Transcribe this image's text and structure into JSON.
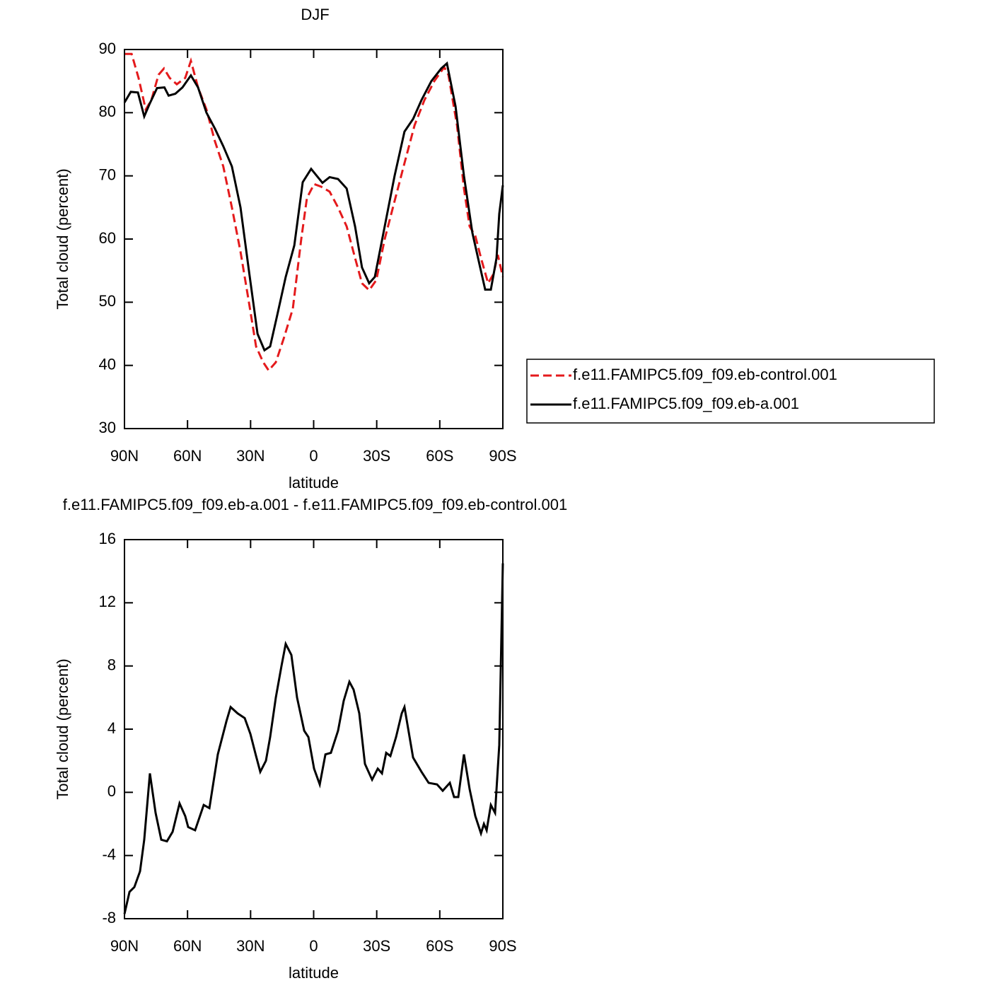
{
  "chart_data": [
    {
      "type": "line",
      "title": "DJF",
      "x_label": "latitude",
      "y_label": "Total cloud (percent)",
      "xlim": [
        90,
        -90
      ],
      "ylim": [
        30,
        90
      ],
      "xticks": [
        {
          "value": 90,
          "label": "90N"
        },
        {
          "value": 60,
          "label": "60N"
        },
        {
          "value": 30,
          "label": "30N"
        },
        0,
        {
          "value": -30,
          "label": "30S"
        },
        {
          "value": -60,
          "label": "60S"
        },
        {
          "value": -90,
          "label": "90S"
        }
      ],
      "yticks": [
        30,
        40,
        50,
        60,
        70,
        80,
        90
      ],
      "legend": "right",
      "series": [
        {
          "name": "f.e11.FAMIPC5.f09_f09.eb-control.001",
          "color": "#e41a1c",
          "linestyle": "dashed",
          "x": [
            90,
            86.6,
            83.3,
            79.9,
            77.2,
            73.8,
            71.2,
            68.5,
            65.1,
            61.1,
            58.4,
            55,
            51,
            47,
            43,
            38.9,
            34.8,
            30.8,
            27.4,
            24,
            21.4,
            18,
            14,
            9.9,
            5.9,
            3.2,
            -0.2,
            -3.5,
            -7.6,
            -11.6,
            -15.7,
            -19.7,
            -23,
            -26.4,
            -29.8,
            -33.8,
            -38.5,
            -43.2,
            -48,
            -52.7,
            -57.4,
            -62.1,
            -64.1,
            -68.2,
            -71.5,
            -74.2,
            -76.9,
            -79.6,
            -83,
            -85.6,
            -87.6,
            -90
          ],
          "values": [
            89.3,
            89.3,
            85.5,
            80.5,
            82,
            86,
            87,
            85.5,
            84.5,
            85.5,
            88.2,
            84,
            80.5,
            75.5,
            71.5,
            65,
            58,
            50,
            43,
            40.5,
            39.2,
            40.5,
            44.5,
            49,
            60,
            66.5,
            68.7,
            68.3,
            67.5,
            65,
            62,
            57,
            53,
            51.9,
            53.5,
            60,
            66,
            72,
            78,
            82,
            85,
            87.2,
            86,
            78,
            68,
            62,
            60.5,
            57,
            53,
            54.5,
            57.5,
            54
          ]
        },
        {
          "name": "f.e11.FAMIPC5.f09_f09.eb-a.001",
          "color": "#000000",
          "linestyle": "solid",
          "x": [
            90,
            87,
            83.6,
            80.6,
            77.9,
            74.5,
            71,
            69,
            65.8,
            62.4,
            58.4,
            55,
            51,
            47,
            43,
            38.9,
            34.8,
            30.8,
            26.7,
            23.4,
            20.7,
            17.3,
            13.3,
            9.2,
            5.2,
            1.2,
            -1.5,
            -4.2,
            -7.6,
            -11.6,
            -15.7,
            -19.7,
            -23,
            -26.4,
            -29.1,
            -33.8,
            -38.5,
            -43.2,
            -47.3,
            -51.3,
            -56,
            -60.7,
            -63.4,
            -67.5,
            -71.5,
            -75.5,
            -78.2,
            -81.6,
            -84.3,
            -87,
            -88.3,
            -90
          ],
          "values": [
            81.6,
            83.3,
            83.2,
            79.4,
            81.5,
            83.9,
            84,
            82.7,
            83,
            84,
            85.9,
            84,
            80,
            77.5,
            74.7,
            71.5,
            65,
            55,
            45,
            42.4,
            43,
            48,
            54,
            59,
            69,
            71.1,
            70,
            68.9,
            69.8,
            69.5,
            68,
            62,
            55.5,
            53,
            54,
            62,
            70,
            77,
            79,
            82,
            85,
            87,
            87.8,
            81,
            70,
            61,
            57,
            52,
            52,
            57,
            64,
            68.5
          ]
        }
      ]
    },
    {
      "type": "line",
      "title": "f.e11.FAMIPC5.f09_f09.eb-a.001 - f.e11.FAMIPC5.f09_f09.eb-control.001",
      "x_label": "latitude",
      "y_label": "Total cloud (percent)",
      "xlim": [
        90,
        -90
      ],
      "ylim": [
        -8,
        16
      ],
      "xticks": [
        {
          "value": 90,
          "label": "90N"
        },
        {
          "value": 60,
          "label": "60N"
        },
        {
          "value": 30,
          "label": "30N"
        },
        0,
        {
          "value": -30,
          "label": "30S"
        },
        {
          "value": -60,
          "label": "60S"
        },
        {
          "value": -90,
          "label": "90S"
        }
      ],
      "yticks": [
        -8,
        -4,
        0,
        4,
        8,
        12,
        16
      ],
      "series": [
        {
          "color": "#000000",
          "linestyle": "solid",
          "x": [
            90,
            87.6,
            85.3,
            82.6,
            80.6,
            77.9,
            75.2,
            72.5,
            69.8,
            67.1,
            63.8,
            61.1,
            59.7,
            56.4,
            52.3,
            49.6,
            45.6,
            41.5,
            39.5,
            36.2,
            32.8,
            30.1,
            27.4,
            25.4,
            22.7,
            20.7,
            18,
            15.3,
            13.3,
            10.6,
            7.9,
            4.5,
            2.5,
            -0.2,
            -2.9,
            -5.6,
            -8.2,
            -11.6,
            -14.3,
            -17,
            -19,
            -21.7,
            -24.4,
            -27.8,
            -30.5,
            -32.5,
            -34.5,
            -36.5,
            -39.2,
            -41.9,
            -43.2,
            -47.3,
            -51.3,
            -54.7,
            -58.7,
            -61.4,
            -64.8,
            -66.8,
            -68.8,
            -71.5,
            -74.2,
            -76.9,
            -79.6,
            -81,
            -82.3,
            -84.3,
            -86.3,
            -88.3,
            -90
          ],
          "values": [
            -7.7,
            -6.3,
            -6,
            -5,
            -3,
            1.2,
            -1.3,
            -3,
            -3.1,
            -2.5,
            -0.7,
            -1.5,
            -2.2,
            -2.4,
            -0.8,
            -1,
            2.4,
            4.5,
            5.4,
            5,
            4.7,
            3.7,
            2.3,
            1.3,
            2,
            3.5,
            6,
            8,
            9.4,
            8.7,
            6,
            3.9,
            3.5,
            1.5,
            0.5,
            2.4,
            2.5,
            3.9,
            5.8,
            7,
            6.5,
            5,
            1.8,
            0.8,
            1.5,
            1.2,
            2.5,
            2.3,
            3.5,
            5,
            5.4,
            2.2,
            1.3,
            0.6,
            0.5,
            0.1,
            0.6,
            -0.3,
            -0.3,
            2.4,
            0.2,
            -1.5,
            -2.6,
            -2,
            -2.4,
            -0.8,
            -1.3,
            3,
            14.5
          ]
        }
      ]
    }
  ]
}
